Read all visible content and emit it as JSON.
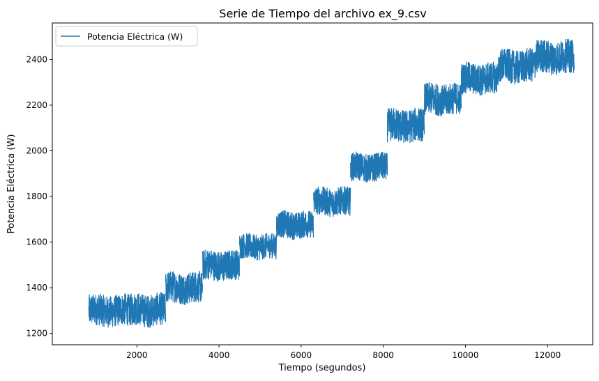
{
  "chart_data": {
    "type": "line",
    "title": "Serie de Tiempo del archivo ex_9.csv",
    "xlabel": "Tiempo (segundos)",
    "ylabel": "Potencia Eléctrica (W)",
    "xlim": [
      -60,
      13100
    ],
    "ylim": [
      1150,
      2560
    ],
    "xticks": [
      2000,
      4000,
      6000,
      8000,
      10000,
      12000
    ],
    "xtick_labels": [
      "2000",
      "4000",
      "6000",
      "8000",
      "10000",
      "12000"
    ],
    "yticks": [
      1200,
      1400,
      1600,
      1800,
      2000,
      2200,
      2400
    ],
    "ytick_labels": [
      "1200",
      "1400",
      "1600",
      "1800",
      "2000",
      "2200",
      "2400"
    ],
    "grid": false,
    "legend_position": "top-left",
    "series": [
      {
        "name": "Potencia Eléctrica (W)",
        "color": "#1f77b4",
        "segments": [
          {
            "x_start": 830,
            "x_end": 1850,
            "y_low": 1225,
            "y_high": 1375
          },
          {
            "x_start": 1850,
            "x_end": 2700,
            "y_low": 1225,
            "y_high": 1380
          },
          {
            "x_start": 2700,
            "x_end": 3600,
            "y_low": 1325,
            "y_high": 1475
          },
          {
            "x_start": 3600,
            "x_end": 4500,
            "y_low": 1425,
            "y_high": 1570
          },
          {
            "x_start": 4500,
            "x_end": 5400,
            "y_low": 1520,
            "y_high": 1640
          },
          {
            "x_start": 5400,
            "x_end": 6300,
            "y_low": 1610,
            "y_high": 1740
          },
          {
            "x_start": 6300,
            "x_end": 7200,
            "y_low": 1710,
            "y_high": 1845
          },
          {
            "x_start": 7200,
            "x_end": 8100,
            "y_low": 1860,
            "y_high": 1995
          },
          {
            "x_start": 8100,
            "x_end": 9000,
            "y_low": 2030,
            "y_high": 2190
          },
          {
            "x_start": 9000,
            "x_end": 9900,
            "y_low": 2150,
            "y_high": 2300
          },
          {
            "x_start": 9900,
            "x_end": 10800,
            "y_low": 2240,
            "y_high": 2390
          },
          {
            "x_start": 10800,
            "x_end": 11700,
            "y_low": 2290,
            "y_high": 2450
          },
          {
            "x_start": 11700,
            "x_end": 12650,
            "y_low": 2330,
            "y_high": 2490
          }
        ]
      }
    ]
  }
}
